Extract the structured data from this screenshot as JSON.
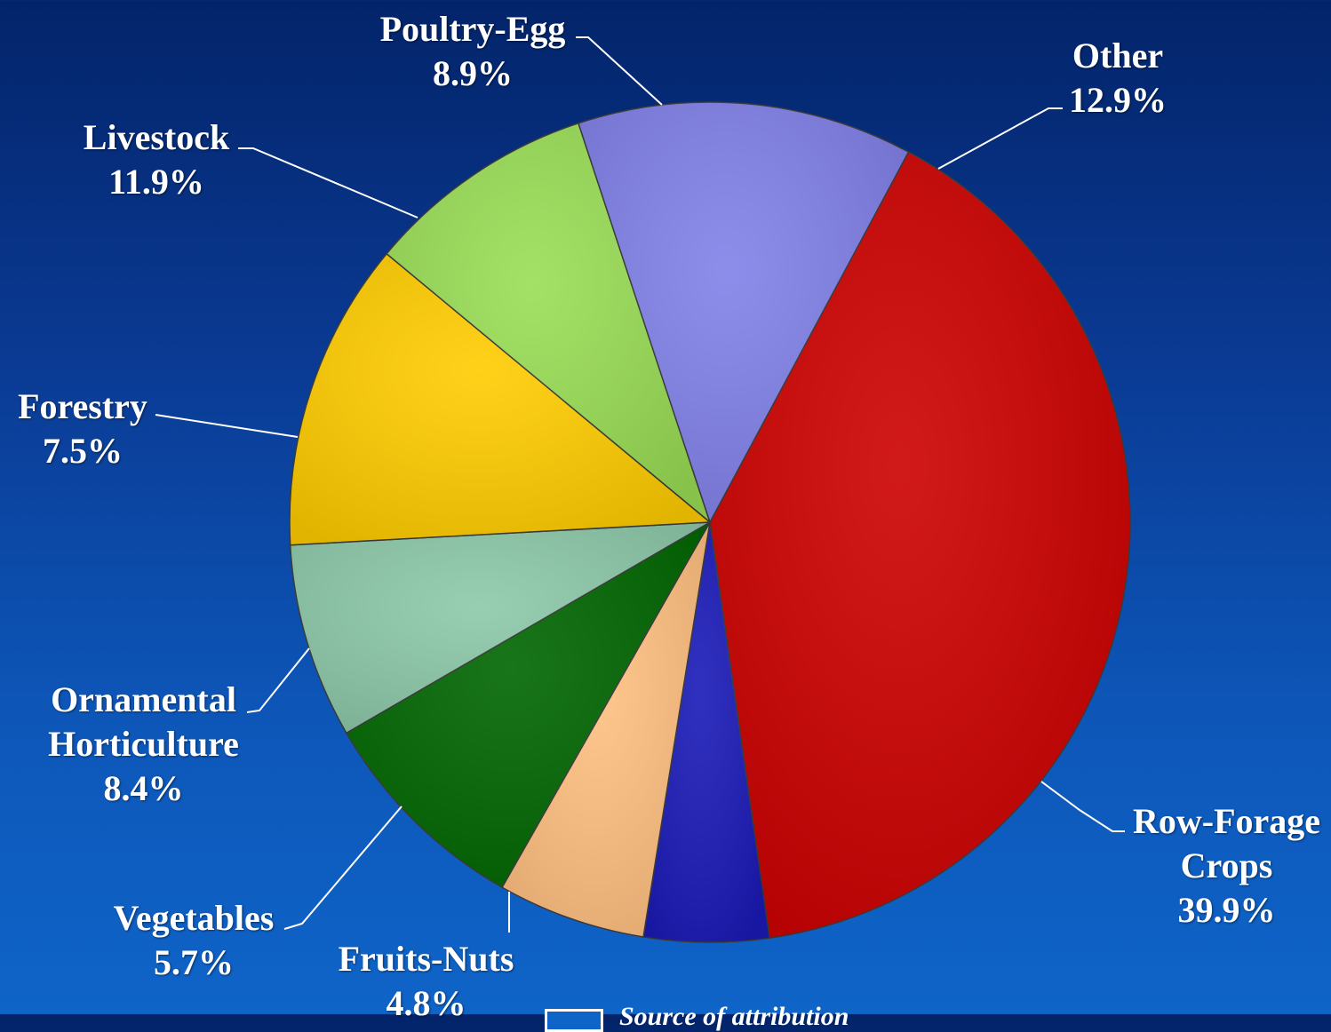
{
  "chart_data": {
    "type": "pie",
    "title": "",
    "slices": [
      {
        "label": "Row-Forage\nCrops",
        "value": 39.9,
        "value_text": "39.9%",
        "color": "#cc0000"
      },
      {
        "label": "Fruits-Nuts",
        "value": 4.8,
        "value_text": "4.8%",
        "color": "#1a1ab8"
      },
      {
        "label": "Vegetables",
        "value": 5.7,
        "value_text": "5.7%",
        "color": "#ffc080"
      },
      {
        "label": "Ornamental\nHorticulture",
        "value": 8.4,
        "value_text": "8.4%",
        "color": "#006600"
      },
      {
        "label": "Forestry",
        "value": 7.5,
        "value_text": "7.5%",
        "color": "#8cc8a8"
      },
      {
        "label": "Livestock",
        "value": 11.9,
        "value_text": "11.9%",
        "color": "#ffcc00"
      },
      {
        "label": "Poultry-Egg",
        "value": 8.9,
        "value_text": "8.9%",
        "color": "#99dd55"
      },
      {
        "label": "Other",
        "value": 12.9,
        "value_text": "12.9%",
        "color": "#8080e8"
      }
    ],
    "legend": "none",
    "colors": {
      "background_top": "#03246a",
      "background_bottom": "#0f64c8",
      "text": "#ffffff"
    }
  },
  "footer": {
    "text": "Source of attribution"
  }
}
